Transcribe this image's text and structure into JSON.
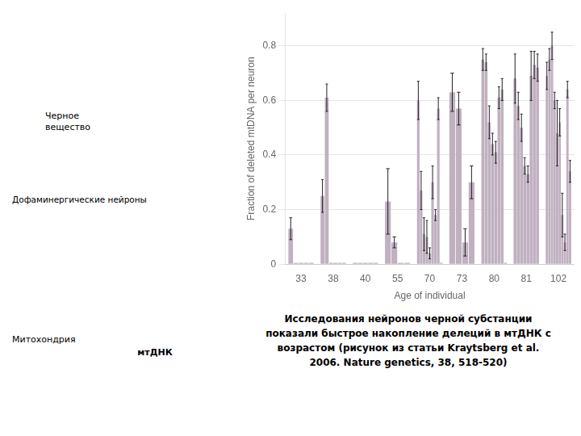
{
  "chart_data": {
    "type": "bar",
    "xlabel": "Age of individual",
    "ylabel": "Fraction of deleted mtDNA per neuron",
    "categories": [
      "33",
      "38",
      "40",
      "55",
      "70",
      "73",
      "80",
      "81",
      "102"
    ],
    "color": "#c0b0c0",
    "ylim": [
      0,
      0.92
    ],
    "yticks": [
      0,
      0.2,
      0.4,
      0.6,
      0.8
    ],
    "grid": "y",
    "series": [
      {
        "values": [
          0.13,
          0.25,
          0.005,
          0.23,
          0.6,
          0.63,
          0.75,
          0.68,
          0.69
        ],
        "errors": [
          0.04,
          0.06,
          null,
          0.12,
          0.07,
          0.07,
          0.04,
          0.09,
          0.05
        ]
      },
      {
        "values": [
          0.005,
          0.61,
          0.005,
          0.08,
          0.27,
          0.57,
          0.74,
          0.58,
          0.75
        ],
        "errors": [
          null,
          0.05,
          null,
          0.02,
          0.07,
          0.06,
          0.03,
          0.05,
          0.04
        ]
      },
      {
        "values": [
          0.005,
          0.005,
          0.005,
          0.005,
          0.11,
          0.08,
          0.52,
          0.5,
          0.8
        ],
        "errors": [
          null,
          null,
          null,
          null,
          0.06,
          0.05,
          0.06,
          0.05,
          0.05
        ]
      },
      {
        "values": [
          0.005,
          0.005,
          0.005,
          0.005,
          0.1,
          0.3,
          0.44,
          0.36,
          0.6
        ],
        "errors": [
          null,
          null,
          null,
          null,
          0.06,
          0.06,
          0.04,
          0.03,
          0.03
        ]
      },
      {
        "values": [
          0.005,
          0.005,
          0.005,
          null,
          0.04,
          null,
          0.41,
          0.33,
          0.48
        ],
        "errors": [
          null,
          null,
          null,
          null,
          0.02,
          null,
          0.04,
          0.03,
          0.12
        ]
      },
      {
        "values": [
          null,
          0.005,
          null,
          null,
          0.3,
          null,
          0.61,
          0.69,
          0.52
        ],
        "errors": [
          null,
          null,
          null,
          null,
          0.06,
          null,
          0.04,
          0.09,
          0.05
        ]
      },
      {
        "values": [
          null,
          null,
          null,
          null,
          0.18,
          null,
          0.64,
          0.73,
          0.18
        ],
        "errors": [
          null,
          null,
          null,
          null,
          0.02,
          null,
          0.04,
          0.05,
          0.08
        ]
      },
      {
        "values": [
          null,
          null,
          null,
          null,
          0.57,
          null,
          0.005,
          0.72,
          0.08
        ],
        "errors": [
          null,
          null,
          null,
          null,
          0.04,
          null,
          null,
          0.05,
          0.03
        ]
      },
      {
        "values": [
          null,
          null,
          null,
          null,
          0.005,
          null,
          null,
          null,
          0.64
        ],
        "errors": [
          null,
          null,
          null,
          null,
          null,
          null,
          null,
          null,
          0.03
        ]
      },
      {
        "values": [
          null,
          null,
          null,
          null,
          null,
          null,
          null,
          null,
          0.34
        ],
        "errors": [
          null,
          null,
          null,
          null,
          null,
          null,
          null,
          null,
          0.04
        ]
      }
    ],
    "annotations": [
      "Черное\nвещество",
      "Дофаминергические нейроны",
      "Митохондрия",
      "мтДНК",
      "Исследования нейронов черной субстанции\nпоказали быстрое накопление делеций в мтДНК с\nвозрастом (рисунок из статьи Kraytsberg et al.\n2006. Nature genetics, 38, 518-520)"
    ]
  }
}
